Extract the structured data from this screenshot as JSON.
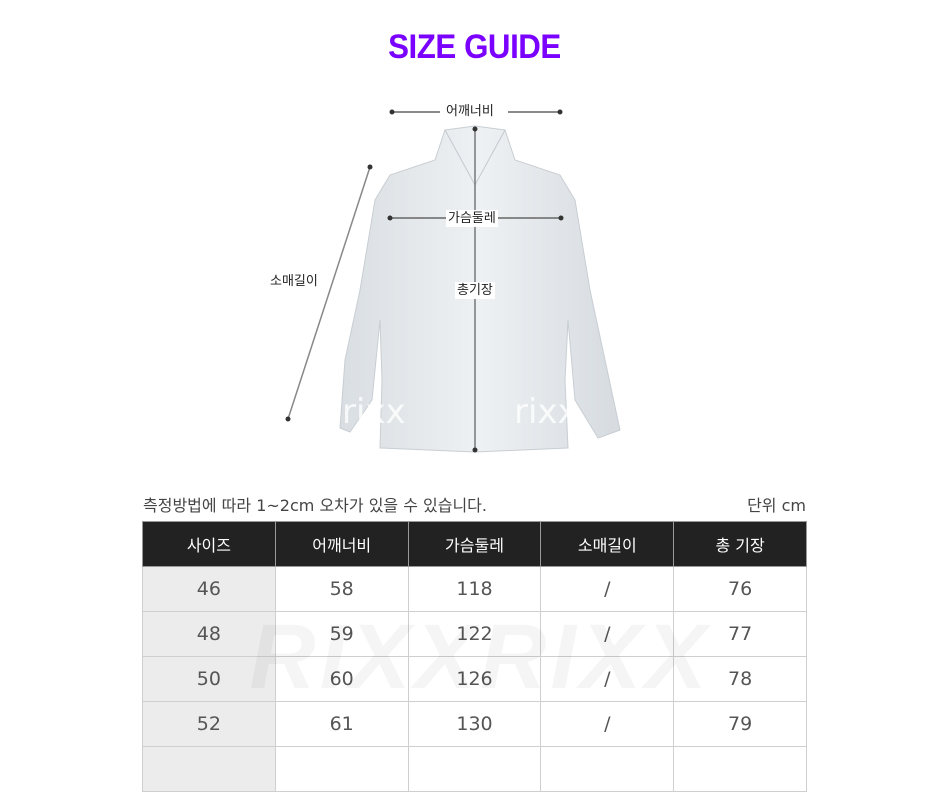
{
  "title": "SIZE GUIDE",
  "colors": {
    "title": "#7a00ff",
    "header_bg": "#222222",
    "first_col_bg": "#ececec"
  },
  "diagram": {
    "labels": {
      "shoulder": "어깨너비",
      "chest": "가슴둘레",
      "sleeve": "소매길이",
      "length": "총기장"
    },
    "watermark": "rixx"
  },
  "note": "측정방법에 따라 1~2cm 오차가 있을 수 있습니다.",
  "unit": "단위 cm",
  "table": {
    "headers": [
      "사이즈",
      "어깨너비",
      "가슴둘레",
      "소매길이",
      "총 기장"
    ],
    "rows": [
      [
        "46",
        "58",
        "118",
        "/",
        "76"
      ],
      [
        "48",
        "59",
        "122",
        "/",
        "77"
      ],
      [
        "50",
        "60",
        "126",
        "/",
        "78"
      ],
      [
        "52",
        "61",
        "130",
        "/",
        "79"
      ],
      [
        "",
        "",
        "",
        "",
        ""
      ]
    ],
    "watermark": "RIXXRIXX"
  }
}
